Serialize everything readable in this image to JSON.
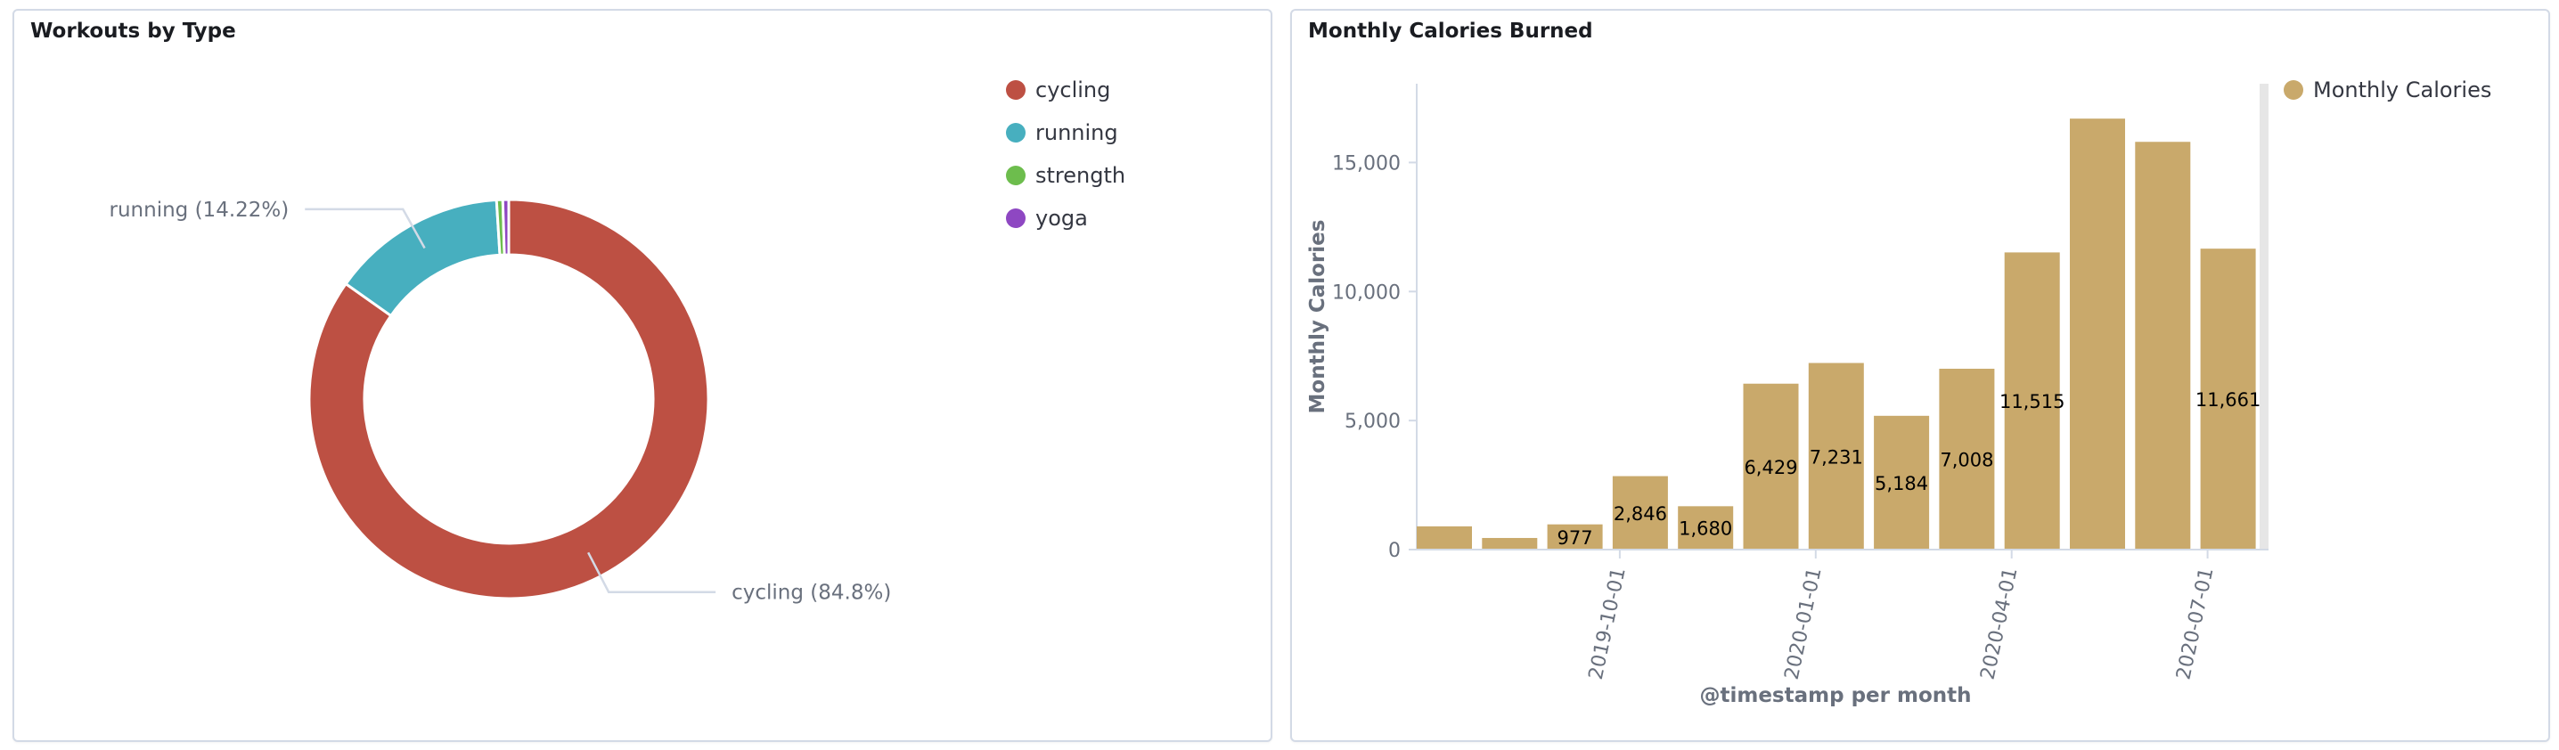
{
  "panels": {
    "workouts": {
      "title": "Workouts by Type"
    },
    "calories": {
      "title": "Monthly Calories Burned"
    }
  },
  "colors": {
    "cycling": "#bd5043",
    "running": "#47afbf",
    "strength": "#6dbd4d",
    "yoga": "#8e47c2",
    "bar": "#c9a96b",
    "axis_text": "#69707d",
    "axis_title": "#69707d",
    "label_text": "#69707d"
  },
  "chart_data": [
    {
      "type": "pie",
      "donut": true,
      "title": "Workouts by Type",
      "legend_position": "top-right",
      "series": [
        {
          "name": "cycling",
          "value": 84.8
        },
        {
          "name": "running",
          "value": 14.22
        },
        {
          "name": "strength",
          "value": 0.5
        },
        {
          "name": "yoga",
          "value": 0.48
        }
      ],
      "legend": [
        "cycling",
        "running",
        "strength",
        "yoga"
      ],
      "slice_labels": [
        {
          "series": "running",
          "text": "running (14.22%)"
        },
        {
          "series": "cycling",
          "text": "cycling (84.8%)"
        }
      ]
    },
    {
      "type": "bar",
      "title": "Monthly Calories Burned",
      "xlabel": "@timestamp per month",
      "ylabel": "Monthly Calories",
      "ylim": [
        0,
        17500
      ],
      "yticks": [
        0,
        5000,
        10000,
        15000
      ],
      "ytick_labels": [
        "0",
        "5,000",
        "10,000",
        "15,000"
      ],
      "x": [
        "2019-07-01",
        "2019-08-01",
        "2019-09-01",
        "2019-10-01",
        "2019-11-01",
        "2019-12-01",
        "2020-01-01",
        "2020-02-01",
        "2020-03-01",
        "2020-04-01",
        "2020-05-01",
        "2020-06-01",
        "2020-07-01"
      ],
      "xtick_labels": [
        "2019-10-01",
        "2020-01-01",
        "2020-04-01",
        "2020-07-01"
      ],
      "series": [
        {
          "name": "Monthly Calories",
          "values": [
            900,
            450,
            977,
            2846,
            1680,
            6429,
            7231,
            5184,
            7008,
            11515,
            16700,
            15800,
            11661
          ]
        }
      ],
      "data_labels": [
        "",
        "",
        "977",
        "2,846",
        "1,680",
        "6,429",
        "7,231",
        "5,184",
        "7,008",
        "11,515",
        "",
        "",
        "11,661"
      ],
      "legend_position": "top-right",
      "grid": false
    }
  ]
}
